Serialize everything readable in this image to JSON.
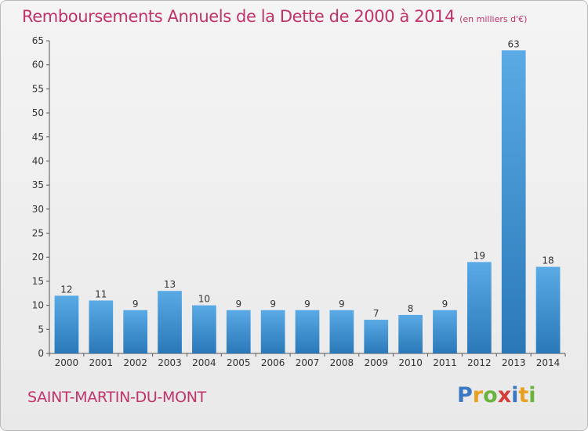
{
  "header": {
    "title": "Remboursements Annuels de la Dette de 2000 à 2014",
    "unit": "(en milliers d'€)"
  },
  "footer": {
    "commune": "SAINT-MARTIN-DU-MONT",
    "logo": [
      "P",
      "r",
      "o",
      "x",
      "i",
      "t",
      "i"
    ],
    "logo_colors": [
      "#3a78c3",
      "#e8a020",
      "#6cb33e",
      "#d63c3c",
      "#3a78c3",
      "#e8a020",
      "#6cb33e"
    ]
  },
  "chart_data": {
    "type": "bar",
    "categories": [
      "2000",
      "2001",
      "2002",
      "2003",
      "2004",
      "2005",
      "2006",
      "2007",
      "2008",
      "2009",
      "2010",
      "2011",
      "2012",
      "2013",
      "2014"
    ],
    "values": [
      12,
      11,
      9,
      13,
      10,
      9,
      9,
      9,
      9,
      7,
      8,
      9,
      19,
      63,
      18
    ],
    "value_labels": [
      "12",
      "11",
      "9",
      "13",
      "10",
      "9",
      "9",
      "9",
      "9",
      "7",
      "8",
      "9",
      "19",
      "63",
      "18"
    ],
    "yticks": [
      "0",
      "5",
      "10",
      "15",
      "20",
      "25",
      "30",
      "35",
      "40",
      "45",
      "50",
      "55",
      "60",
      "65"
    ],
    "ylim": [
      0,
      65
    ],
    "grid": false,
    "bar_color_top": "#5aaae6",
    "bar_color_bottom": "#2a78b8"
  }
}
